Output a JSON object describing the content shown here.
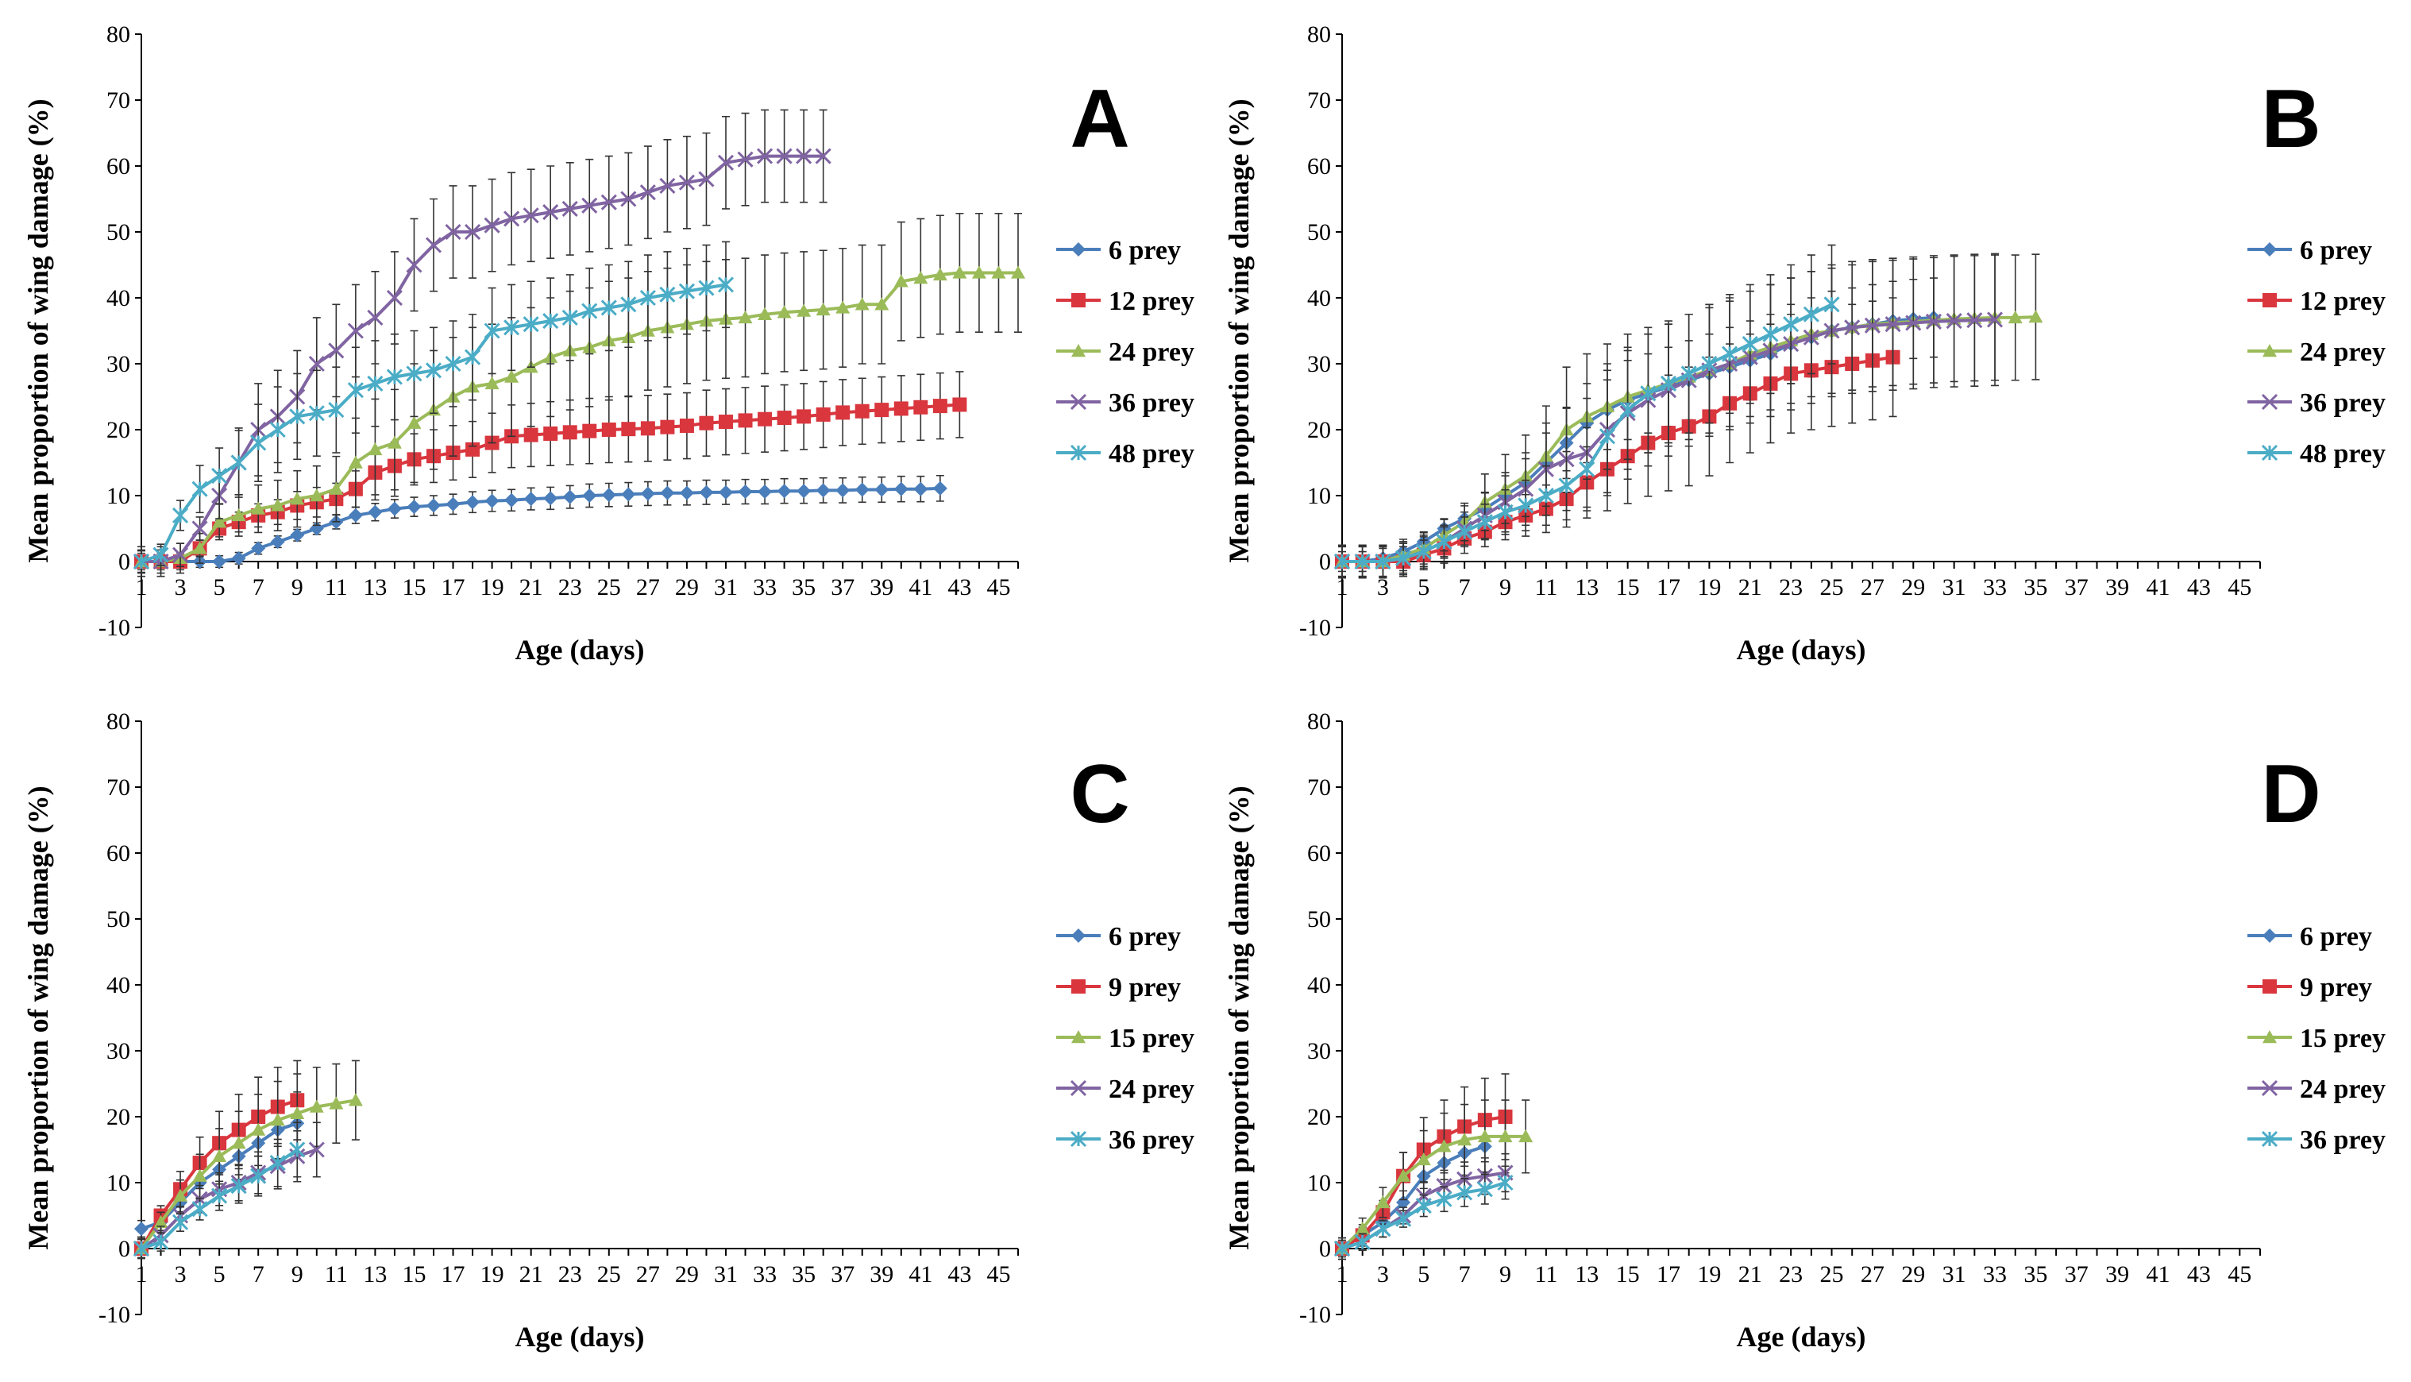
{
  "chart_data": [
    {
      "type": "line",
      "panel": "A",
      "xlabel": "Age (days)",
      "ylabel": "Mean proportion of wing damage (%)",
      "ylim": [
        -10,
        80
      ],
      "yticks": [
        -10,
        0,
        10,
        20,
        30,
        40,
        50,
        60,
        70,
        80
      ],
      "xlim": [
        1,
        46
      ],
      "xtick_labels": [
        "1",
        "3",
        "5",
        "7",
        "9",
        "11",
        "13",
        "15",
        "17",
        "19",
        "21",
        "23",
        "25",
        "27",
        "29",
        "31",
        "33",
        "35",
        "37",
        "39",
        "41",
        "43",
        "45"
      ],
      "series": [
        {
          "name": "6 prey",
          "color": "#4a7ebb",
          "marker": "diamond",
          "err": 3.5,
          "values": [
            0,
            0,
            0,
            0,
            0,
            0.5,
            2,
            3,
            4,
            5,
            6,
            7,
            7.5,
            8,
            8.3,
            8.5,
            8.7,
            9,
            9.2,
            9.3,
            9.5,
            9.6,
            9.8,
            10,
            10.1,
            10.2,
            10.3,
            10.4,
            10.4,
            10.5,
            10.5,
            10.6,
            10.6,
            10.7,
            10.7,
            10.8,
            10.8,
            10.9,
            10.9,
            11,
            11,
            11.1
          ]
        },
        {
          "name": "12 prey",
          "color": "#d9363e",
          "marker": "square",
          "err": 5,
          "values": [
            0,
            0,
            0,
            2,
            5,
            6,
            7,
            7.5,
            8.5,
            9,
            9.5,
            11,
            13.5,
            14.5,
            15.5,
            16,
            16.5,
            17,
            18,
            19,
            19.2,
            19.4,
            19.6,
            19.8,
            20,
            20.1,
            20.2,
            20.4,
            20.6,
            21,
            21.2,
            21.4,
            21.6,
            21.8,
            22,
            22.3,
            22.6,
            22.8,
            23,
            23.2,
            23.4,
            23.6,
            23.8
          ]
        },
        {
          "name": "24 prey",
          "color": "#9bbb59",
          "marker": "triangle",
          "err": 9,
          "values": [
            0,
            0,
            0.5,
            2,
            6,
            7,
            8,
            8.5,
            9.5,
            10,
            11,
            15,
            17,
            18,
            21,
            23,
            25,
            26.5,
            27,
            28,
            29.5,
            31,
            32,
            32.5,
            33.5,
            34,
            35,
            35.5,
            36,
            36.5,
            36.8,
            37,
            37.5,
            37.8,
            38,
            38.2,
            38.5,
            39,
            39,
            42.5,
            43,
            43.5,
            43.8,
            43.8,
            43.8,
            43.8
          ]
        },
        {
          "name": "36 prey",
          "color": "#8064a2",
          "marker": "x",
          "err": 7,
          "values": [
            0,
            0,
            1,
            5,
            10,
            15,
            20,
            22,
            25,
            30,
            32,
            35,
            37,
            40,
            45,
            48,
            50,
            50,
            51,
            52,
            52.5,
            53,
            53.5,
            54,
            54.5,
            55,
            56,
            57,
            57.5,
            58,
            60.5,
            61,
            61.5,
            61.5,
            61.5,
            61.5
          ]
        },
        {
          "name": "48 prey",
          "color": "#4bacc6",
          "marker": "star",
          "err": 6.5,
          "values": [
            0,
            1,
            7,
            11,
            13,
            15,
            18,
            20,
            22,
            22.5,
            23,
            26,
            27,
            28,
            28.5,
            29,
            30,
            31,
            35,
            35.5,
            36,
            36.5,
            37,
            38,
            38.5,
            39,
            40,
            40.5,
            41,
            41.5,
            42
          ]
        }
      ]
    },
    {
      "type": "line",
      "panel": "B",
      "xlabel": "Age (days)",
      "ylabel": "Mean proportion of wing damage (%)",
      "ylim": [
        -10,
        80
      ],
      "yticks": [
        -10,
        0,
        10,
        20,
        30,
        40,
        50,
        60,
        70,
        80
      ],
      "xlim": [
        1,
        46
      ],
      "xtick_labels": [
        "1",
        "3",
        "5",
        "7",
        "9",
        "11",
        "13",
        "15",
        "17",
        "19",
        "21",
        "23",
        "25",
        "27",
        "29",
        "31",
        "33",
        "35",
        "37",
        "39",
        "41",
        "43",
        "45"
      ],
      "series": [
        {
          "name": "6 prey",
          "color": "#4a7ebb",
          "marker": "diamond",
          "err": 6,
          "values": [
            0,
            0,
            0.5,
            1.5,
            3,
            5,
            6.5,
            8,
            10,
            12,
            15,
            18,
            21,
            23,
            24.5,
            25.5,
            26.5,
            27.5,
            28.5,
            29.5,
            30.5,
            31.5,
            33,
            34,
            35,
            35.5,
            36,
            36.5,
            36.8,
            37
          ]
        },
        {
          "name": "12 prey",
          "color": "#d9363e",
          "marker": "square",
          "err": 9,
          "values": [
            0,
            0,
            0,
            0,
            1,
            2,
            3.5,
            4.5,
            6,
            7,
            8,
            9.5,
            12,
            14,
            16,
            18,
            19.5,
            20.5,
            22,
            24,
            25.5,
            27,
            28.5,
            29,
            29.5,
            30,
            30.5,
            31
          ]
        },
        {
          "name": "24 prey",
          "color": "#9bbb59",
          "marker": "triangle",
          "err": 9.5,
          "values": [
            0,
            0,
            0,
            1,
            2,
            4,
            6,
            9,
            11,
            13,
            16,
            20,
            22,
            23.5,
            25,
            26,
            27,
            28,
            29,
            30,
            31.5,
            32.5,
            33.5,
            34.5,
            35,
            35.5,
            36,
            36.2,
            36.4,
            36.6,
            36.8,
            36.9,
            37,
            37,
            37.1
          ]
        },
        {
          "name": "36 prey",
          "color": "#8064a2",
          "marker": "x",
          "err": 10,
          "values": [
            0,
            0,
            0,
            0.5,
            1.5,
            3,
            5,
            7,
            9,
            11,
            14,
            15.5,
            16.5,
            20,
            22.5,
            24.5,
            26,
            27.5,
            29,
            30,
            31,
            32,
            33,
            34,
            35,
            35.5,
            35.8,
            36,
            36.2,
            36.4,
            36.5,
            36.6,
            36.7
          ]
        },
        {
          "name": "48 prey",
          "color": "#4bacc6",
          "marker": "star",
          "err": 9,
          "values": [
            0,
            0,
            0,
            0.5,
            1.5,
            3,
            4.5,
            6,
            7.5,
            8.5,
            10,
            11.5,
            14,
            19,
            23,
            25.5,
            27,
            28.5,
            30,
            31.5,
            33,
            34.5,
            36,
            37.5,
            39
          ]
        }
      ]
    },
    {
      "type": "line",
      "panel": "C",
      "xlabel": "Age (days)",
      "ylabel": "Mean proportion of wing damage (%)",
      "ylim": [
        -10,
        80
      ],
      "yticks": [
        -10,
        0,
        10,
        20,
        30,
        40,
        50,
        60,
        70,
        80
      ],
      "xlim": [
        1,
        46
      ],
      "xtick_labels": [
        "1",
        "3",
        "5",
        "7",
        "9",
        "11",
        "13",
        "15",
        "17",
        "19",
        "21",
        "23",
        "25",
        "27",
        "29",
        "31",
        "33",
        "35",
        "37",
        "39",
        "41",
        "43",
        "45"
      ],
      "series": [
        {
          "name": "6 prey",
          "color": "#4a7ebb",
          "marker": "diamond",
          "err": 5,
          "values": [
            3,
            4,
            7,
            10,
            12,
            14,
            16,
            18,
            19
          ]
        },
        {
          "name": "9 prey",
          "color": "#d9363e",
          "marker": "square",
          "err": 6,
          "values": [
            0,
            5,
            9,
            13,
            16,
            18,
            20,
            21.5,
            22.5
          ]
        },
        {
          "name": "15 prey",
          "color": "#9bbb59",
          "marker": "triangle",
          "err": 6,
          "values": [
            0,
            4,
            8,
            11,
            14,
            16,
            18,
            19.5,
            20.5,
            21.5,
            22,
            22.5
          ]
        },
        {
          "name": "24 prey",
          "color": "#8064a2",
          "marker": "x",
          "err": 5.5,
          "values": [
            0,
            2,
            5,
            7.5,
            9,
            10,
            11.5,
            12.5,
            14,
            15
          ]
        },
        {
          "name": "36 prey",
          "color": "#4bacc6",
          "marker": "star",
          "err": 5.5,
          "values": [
            0,
            1,
            4,
            6,
            8,
            9.5,
            11,
            13,
            15
          ]
        }
      ]
    },
    {
      "type": "line",
      "panel": "D",
      "xlabel": "Age (days)",
      "ylabel": "Mean proportion of wing damage (%)",
      "ylim": [
        -10,
        80
      ],
      "yticks": [
        -10,
        0,
        10,
        20,
        30,
        40,
        50,
        60,
        70,
        80
      ],
      "xlim": [
        1,
        46
      ],
      "xtick_labels": [
        "1",
        "3",
        "5",
        "7",
        "9",
        "11",
        "13",
        "15",
        "17",
        "19",
        "21",
        "23",
        "25",
        "27",
        "29",
        "31",
        "33",
        "35",
        "37",
        "39",
        "41",
        "43",
        "45"
      ],
      "series": [
        {
          "name": "6 prey",
          "color": "#4a7ebb",
          "marker": "diamond",
          "err": 5,
          "values": [
            0,
            2,
            4,
            7,
            11,
            13,
            14.5,
            15.5
          ]
        },
        {
          "name": "9 prey",
          "color": "#d9363e",
          "marker": "square",
          "err": 6.5,
          "values": [
            0,
            2,
            5.5,
            11,
            15,
            17,
            18.5,
            19.5,
            20
          ]
        },
        {
          "name": "15 prey",
          "color": "#9bbb59",
          "marker": "triangle",
          "err": 6.5,
          "values": [
            0,
            3,
            7,
            11,
            13.5,
            15.5,
            16.5,
            17,
            17,
            17
          ]
        },
        {
          "name": "24 prey",
          "color": "#8064a2",
          "marker": "x",
          "err": 5,
          "values": [
            0,
            1,
            3,
            5,
            8,
            9.5,
            10.5,
            11,
            11.5
          ]
        },
        {
          "name": "36 prey",
          "color": "#4bacc6",
          "marker": "star",
          "err": 5,
          "values": [
            0,
            1,
            3,
            4.5,
            6.5,
            7.5,
            8.5,
            9,
            10
          ]
        }
      ]
    }
  ]
}
